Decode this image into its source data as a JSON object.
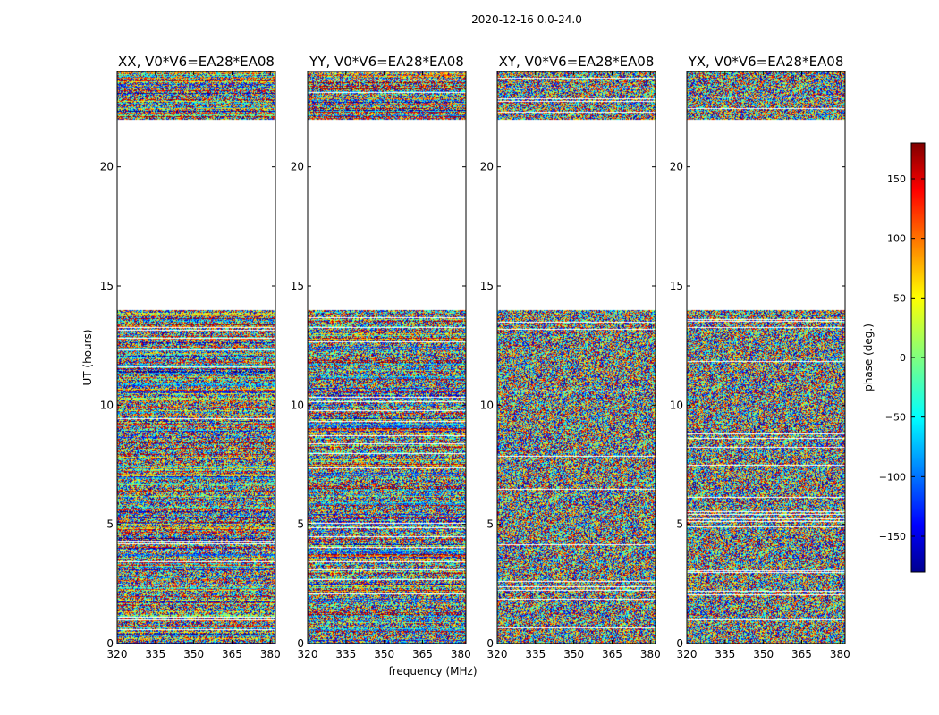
{
  "figure_title": "2020-12-16 0.0-24.0",
  "chart_data": {
    "type": "heatmap",
    "title": "2020-12-16 0.0-24.0",
    "xlabel": "frequency (MHz)",
    "ylabel": "UT (hours)",
    "xlim": [
      320,
      382
    ],
    "ylim": [
      0,
      24
    ],
    "x_ticks": [
      320,
      335,
      350,
      365,
      380
    ],
    "y_ticks": [
      0,
      5,
      10,
      15,
      20
    ],
    "panels": [
      {
        "title": "XX, V0*V6=EA28*EA08",
        "polarization": "XX"
      },
      {
        "title": "YY, V0*V6=EA28*EA08",
        "polarization": "YY"
      },
      {
        "title": "XY, V0*V6=EA28*EA08",
        "polarization": "XY"
      },
      {
        "title": "YX, V0*V6=EA28*EA08",
        "polarization": "YX"
      }
    ],
    "data_segments_hours": [
      [
        0.0,
        14.0
      ],
      [
        22.0,
        24.0
      ]
    ],
    "flagged_gap_hours": [
      [
        14.0,
        22.0
      ]
    ],
    "colorbar": {
      "label": "phase (deg.)",
      "range": [
        -180,
        180
      ],
      "ticks": [
        -150,
        -100,
        -50,
        0,
        50,
        100,
        150
      ],
      "tick_labels": [
        "−150",
        "−100",
        "−50",
        "0",
        "50",
        "100",
        "150"
      ],
      "colormap": "jet"
    }
  }
}
